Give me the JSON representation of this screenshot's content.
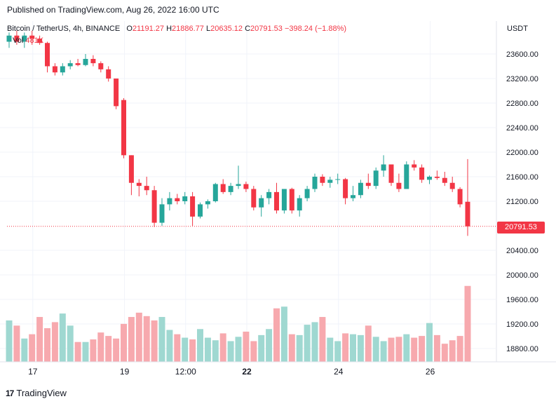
{
  "header": {
    "published": "Published on TradingView.com, Aug 26, 2022 16:00 UTC"
  },
  "legend": {
    "symbol": "Bitcoin / TetherUS, 4h, BINANCE",
    "o_label": "O",
    "o_value": "21191.27",
    "h_label": "H",
    "h_value": "21886.77",
    "l_label": "L",
    "l_value": "20635.12",
    "c_label": "C",
    "c_value": "20791.53",
    "change": "−398.24 (−1.88%)",
    "vol_label": "Vol",
    "vol_value": "481K"
  },
  "price_axis": {
    "currency": "USDT"
  },
  "last_price_label": "20791.53",
  "brand": {
    "logo": "17",
    "name": "TradingView"
  },
  "colors": {
    "up": "#26a69a",
    "down": "#f23645",
    "up_volume": "#9fd8d1",
    "down_volume": "#f7a9ae",
    "grid": "#f0f3fa"
  },
  "chart_data": {
    "type": "candlestick",
    "symbol": "BTCUSDT",
    "interval": "4h",
    "yticks": [
      18800,
      19200,
      19600,
      20000,
      20400,
      21200,
      21600,
      22000,
      22400,
      22800,
      23200,
      23600
    ],
    "ylim": [
      18600,
      24000
    ],
    "x_tick_labels": [
      "17",
      "19",
      "12:00",
      "22",
      "24",
      "26"
    ],
    "x_tick_index": [
      2,
      14,
      22,
      30,
      42,
      54
    ],
    "last_price": 20791.53,
    "candles": [
      {
        "o": 23800,
        "h": 23950,
        "l": 23700,
        "c": 23900
      },
      {
        "o": 23900,
        "h": 23980,
        "l": 23750,
        "c": 23800
      },
      {
        "o": 23800,
        "h": 23950,
        "l": 23700,
        "c": 23900
      },
      {
        "o": 23900,
        "h": 23980,
        "l": 23750,
        "c": 23850
      },
      {
        "o": 23850,
        "h": 23900,
        "l": 23750,
        "c": 23780
      },
      {
        "o": 23780,
        "h": 23800,
        "l": 23300,
        "c": 23400
      },
      {
        "o": 23400,
        "h": 23450,
        "l": 23250,
        "c": 23300
      },
      {
        "o": 23300,
        "h": 23450,
        "l": 23250,
        "c": 23400
      },
      {
        "o": 23400,
        "h": 23500,
        "l": 23350,
        "c": 23450
      },
      {
        "o": 23450,
        "h": 23520,
        "l": 23400,
        "c": 23420
      },
      {
        "o": 23420,
        "h": 23600,
        "l": 23400,
        "c": 23520
      },
      {
        "o": 23520,
        "h": 23580,
        "l": 23400,
        "c": 23450
      },
      {
        "o": 23450,
        "h": 23480,
        "l": 23300,
        "c": 23350
      },
      {
        "o": 23350,
        "h": 23400,
        "l": 23150,
        "c": 23200
      },
      {
        "o": 23200,
        "h": 23200,
        "l": 22700,
        "c": 22750
      },
      {
        "o": 22850,
        "h": 22880,
        "l": 21900,
        "c": 21950
      },
      {
        "o": 21950,
        "h": 21950,
        "l": 21300,
        "c": 21500
      },
      {
        "o": 21500,
        "h": 21560,
        "l": 21280,
        "c": 21450
      },
      {
        "o": 21450,
        "h": 21600,
        "l": 21300,
        "c": 21380
      },
      {
        "o": 21380,
        "h": 21450,
        "l": 20780,
        "c": 20850
      },
      {
        "o": 20850,
        "h": 21250,
        "l": 20800,
        "c": 21150
      },
      {
        "o": 21150,
        "h": 21350,
        "l": 21050,
        "c": 21250
      },
      {
        "o": 21250,
        "h": 21320,
        "l": 21150,
        "c": 21200
      },
      {
        "o": 21200,
        "h": 21350,
        "l": 21150,
        "c": 21280
      },
      {
        "o": 21280,
        "h": 21350,
        "l": 20800,
        "c": 20950
      },
      {
        "o": 20950,
        "h": 21180,
        "l": 20920,
        "c": 21150
      },
      {
        "o": 21150,
        "h": 21230,
        "l": 21080,
        "c": 21200
      },
      {
        "o": 21200,
        "h": 21500,
        "l": 21180,
        "c": 21480
      },
      {
        "o": 21480,
        "h": 21560,
        "l": 21320,
        "c": 21350
      },
      {
        "o": 21350,
        "h": 21500,
        "l": 21300,
        "c": 21450
      },
      {
        "o": 21450,
        "h": 21780,
        "l": 21400,
        "c": 21480
      },
      {
        "o": 21480,
        "h": 21520,
        "l": 21350,
        "c": 21400
      },
      {
        "o": 21400,
        "h": 21450,
        "l": 21050,
        "c": 21100
      },
      {
        "o": 21100,
        "h": 21300,
        "l": 20950,
        "c": 21250
      },
      {
        "o": 21250,
        "h": 21400,
        "l": 21150,
        "c": 21350
      },
      {
        "o": 21350,
        "h": 21500,
        "l": 21000,
        "c": 21050
      },
      {
        "o": 21050,
        "h": 21400,
        "l": 21000,
        "c": 21400
      },
      {
        "o": 21400,
        "h": 21420,
        "l": 21000,
        "c": 21050
      },
      {
        "o": 21050,
        "h": 21300,
        "l": 20950,
        "c": 21250
      },
      {
        "o": 21250,
        "h": 21450,
        "l": 21200,
        "c": 21400
      },
      {
        "o": 21400,
        "h": 21650,
        "l": 21350,
        "c": 21600
      },
      {
        "o": 21600,
        "h": 21640,
        "l": 21450,
        "c": 21500
      },
      {
        "o": 21500,
        "h": 21600,
        "l": 21420,
        "c": 21550
      },
      {
        "o": 21550,
        "h": 21650,
        "l": 21480,
        "c": 21560
      },
      {
        "o": 21560,
        "h": 21580,
        "l": 21150,
        "c": 21250
      },
      {
        "o": 21250,
        "h": 21450,
        "l": 21200,
        "c": 21300
      },
      {
        "o": 21300,
        "h": 21550,
        "l": 21250,
        "c": 21500
      },
      {
        "o": 21500,
        "h": 21650,
        "l": 21400,
        "c": 21450
      },
      {
        "o": 21450,
        "h": 21750,
        "l": 21400,
        "c": 21700
      },
      {
        "o": 21700,
        "h": 21950,
        "l": 21600,
        "c": 21800
      },
      {
        "o": 21800,
        "h": 21800,
        "l": 21450,
        "c": 21500
      },
      {
        "o": 21500,
        "h": 21650,
        "l": 21350,
        "c": 21400
      },
      {
        "o": 21400,
        "h": 21850,
        "l": 21400,
        "c": 21800
      },
      {
        "o": 21800,
        "h": 21870,
        "l": 21700,
        "c": 21750
      },
      {
        "o": 21750,
        "h": 21800,
        "l": 21500,
        "c": 21550
      },
      {
        "o": 21550,
        "h": 21620,
        "l": 21480,
        "c": 21600
      },
      {
        "o": 21600,
        "h": 21700,
        "l": 21550,
        "c": 21580
      },
      {
        "o": 21580,
        "h": 21680,
        "l": 21450,
        "c": 21500
      },
      {
        "o": 21500,
        "h": 21600,
        "l": 21350,
        "c": 21400
      },
      {
        "o": 21400,
        "h": 21430,
        "l": 21100,
        "c": 21150
      },
      {
        "o": 21191.27,
        "h": 21886.77,
        "l": 20635.12,
        "c": 20791.53
      }
    ],
    "volume_ylim": [
      0,
      1000
    ],
    "volumes": [
      480,
      420,
      270,
      320,
      520,
      390,
      460,
      560,
      420,
      230,
      230,
      260,
      340,
      300,
      270,
      440,
      520,
      570,
      530,
      480,
      520,
      370,
      320,
      280,
      260,
      380,
      280,
      250,
      330,
      240,
      290,
      350,
      240,
      310,
      380,
      620,
      640,
      320,
      310,
      430,
      460,
      520,
      280,
      240,
      330,
      320,
      310,
      420,
      290,
      240,
      280,
      290,
      320,
      280,
      300,
      450,
      310,
      210,
      250,
      300,
      880
    ]
  }
}
